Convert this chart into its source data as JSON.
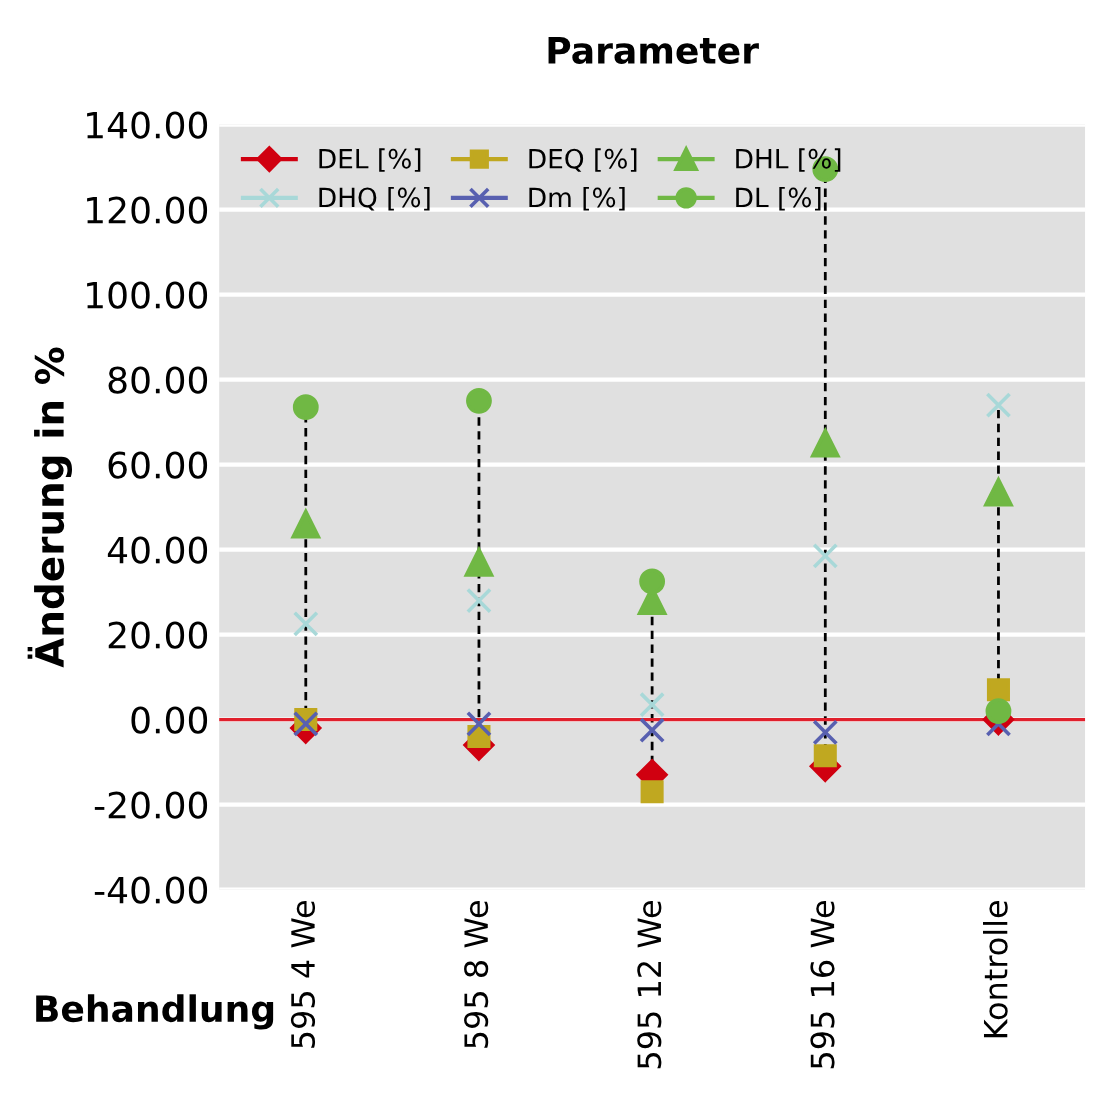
{
  "chart_data": {
    "type": "scatter",
    "title": "Parameter",
    "xlabel": "Behandlung",
    "ylabel": "Änderung in %",
    "categories": [
      "595 4 We",
      "595 8 We",
      "595 12 We",
      "595 16 We",
      "Kontrolle"
    ],
    "series": [
      {
        "name": "DEL [%]",
        "color": "#d00010",
        "marker": "diamond",
        "values": [
          -2,
          -6,
          -13,
          -11,
          0
        ]
      },
      {
        "name": "DEQ [%]",
        "color": "#c0a820",
        "marker": "square",
        "values": [
          0,
          -4,
          -17,
          -8.5,
          7
        ]
      },
      {
        "name": "DHL [%]",
        "color": "#70b844",
        "marker": "triangle",
        "values": [
          46,
          37,
          28,
          65,
          53.5
        ]
      },
      {
        "name": "DHQ [%]",
        "color": "#a8d8d8",
        "marker": "cross",
        "values": [
          22.5,
          28,
          3.5,
          38.5,
          74
        ]
      },
      {
        "name": "Dm [%]",
        "color": "#5860b0",
        "marker": "cross",
        "values": [
          -1,
          -1,
          -2.5,
          -3,
          -1
        ]
      },
      {
        "name": "DL [%]",
        "color": "#70b844",
        "marker": "circle",
        "values": [
          73.5,
          75,
          32.5,
          129.5,
          2
        ]
      }
    ],
    "ylim": [
      -40,
      140
    ],
    "yticks": [
      {
        "value": -40,
        "label": "-40.00"
      },
      {
        "value": -20,
        "label": "-20.00"
      },
      {
        "value": 0,
        "label": "0.00"
      },
      {
        "value": 20,
        "label": "20.00"
      },
      {
        "value": 40,
        "label": "40.00"
      },
      {
        "value": 60,
        "label": "60.00"
      },
      {
        "value": 80,
        "label": "80.00"
      },
      {
        "value": 100,
        "label": "100.00"
      },
      {
        "value": 120,
        "label": "120.00"
      },
      {
        "value": 140,
        "label": "140.00"
      }
    ],
    "ref_lines": [
      {
        "axis": "y",
        "value": 0,
        "color": "#e0202c"
      }
    ],
    "grid": "y",
    "legend": "top left"
  }
}
